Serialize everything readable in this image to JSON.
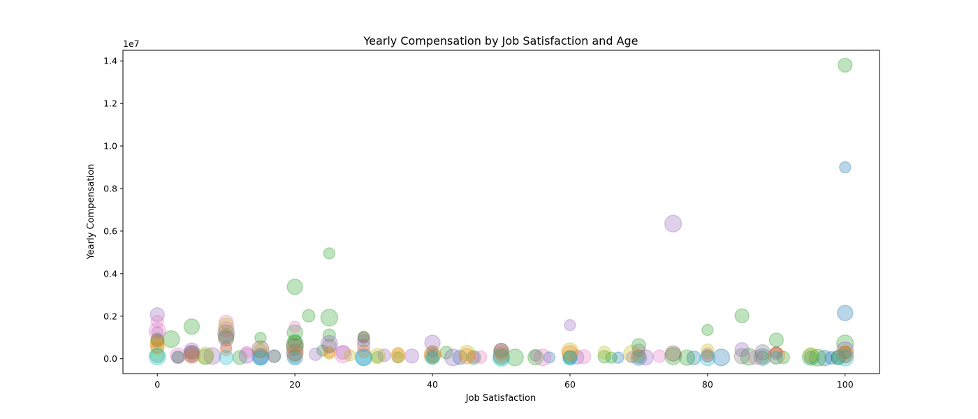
{
  "chart_data": {
    "type": "scatter",
    "title": "Yearly Compensation by Job Satisfaction and Age",
    "xlabel": "Job Satisfaction",
    "ylabel": "Yearly Compensation",
    "y_offset_label": "1e7",
    "xlim": [
      -5,
      105
    ],
    "ylim": [
      -700000,
      14500000
    ],
    "x_ticks": [
      0,
      20,
      40,
      60,
      80,
      100
    ],
    "y_ticks": [
      0,
      2000000,
      4000000,
      6000000,
      8000000,
      10000000,
      12000000,
      14000000
    ],
    "x_tick_labels": [
      "0",
      "20",
      "40",
      "60",
      "80",
      "100"
    ],
    "y_tick_labels": [
      "0.0",
      "0.2",
      "0.4",
      "0.6",
      "0.8",
      "1.0",
      "1.2",
      "1.4"
    ],
    "grid": false,
    "marker_alpha": 0.3,
    "series": [
      {
        "color": "#1f77b4",
        "points": [
          [
            100,
            9000000
          ],
          [
            100,
            2150000
          ],
          [
            100,
            100000
          ],
          [
            82,
            60000
          ],
          [
            78,
            40000
          ],
          [
            67,
            50000
          ],
          [
            97,
            30000
          ],
          [
            95,
            60000
          ],
          [
            88,
            80000
          ],
          [
            44,
            60000
          ],
          [
            57,
            60000
          ],
          [
            20,
            70000
          ],
          [
            3,
            70000
          ],
          [
            15,
            90000
          ],
          [
            60,
            60000
          ],
          [
            40,
            120000
          ],
          [
            70,
            50000
          ],
          [
            98,
            40000
          ],
          [
            30,
            70000
          ],
          [
            99,
            50000
          ]
        ]
      },
      {
        "color": "#2ca02c",
        "points": [
          [
            100,
            13800000
          ],
          [
            25,
            4950000
          ],
          [
            20,
            3380000
          ],
          [
            22,
            2020000
          ],
          [
            25,
            1930000
          ],
          [
            85,
            2020000
          ],
          [
            80,
            1350000
          ],
          [
            5,
            1510000
          ],
          [
            0,
            920000
          ],
          [
            2,
            920000
          ],
          [
            90,
            880000
          ],
          [
            15,
            980000
          ],
          [
            20,
            1230000
          ],
          [
            25,
            1100000
          ],
          [
            100,
            720000
          ],
          [
            70,
            620000
          ],
          [
            30,
            1030000
          ],
          [
            10,
            1060000
          ],
          [
            42,
            290000
          ],
          [
            52,
            60000
          ],
          [
            46,
            60000
          ],
          [
            66,
            50000
          ],
          [
            77,
            50000
          ],
          [
            91,
            60000
          ],
          [
            86,
            90000
          ],
          [
            0,
            150000
          ],
          [
            3,
            70000
          ],
          [
            7,
            90000
          ],
          [
            17,
            120000
          ],
          [
            20,
            690000
          ],
          [
            20,
            810000
          ],
          [
            24,
            380000
          ],
          [
            40,
            120000
          ],
          [
            60,
            80000
          ],
          [
            75,
            120000
          ],
          [
            99,
            60000
          ],
          [
            35,
            60000
          ],
          [
            50,
            80000
          ],
          [
            88,
            60000
          ],
          [
            96,
            50000
          ],
          [
            12,
            60000
          ],
          [
            32,
            80000
          ],
          [
            55,
            70000
          ],
          [
            65,
            90000
          ],
          [
            95,
            80000
          ]
        ]
      },
      {
        "color": "#9467bd",
        "points": [
          [
            75,
            6350000
          ],
          [
            0,
            2070000
          ],
          [
            60,
            1580000
          ],
          [
            40,
            750000
          ],
          [
            30,
            630000
          ],
          [
            100,
            400000
          ],
          [
            85,
            430000
          ],
          [
            10,
            550000
          ],
          [
            5,
            380000
          ],
          [
            23,
            210000
          ],
          [
            43,
            60000
          ],
          [
            61,
            70000
          ],
          [
            69,
            70000
          ],
          [
            13,
            150000
          ],
          [
            17,
            120000
          ],
          [
            25,
            700000
          ],
          [
            27,
            300000
          ],
          [
            0,
            1250000
          ],
          [
            50,
            350000
          ],
          [
            90,
            250000
          ],
          [
            8,
            130000
          ],
          [
            37,
            130000
          ],
          [
            46,
            70000
          ],
          [
            71,
            60000
          ],
          [
            33,
            160000
          ],
          [
            5,
            200000
          ],
          [
            15,
            90000
          ],
          [
            80,
            100000
          ]
        ]
      },
      {
        "color": "#e377c2",
        "points": [
          [
            0,
            1750000
          ],
          [
            0,
            1300000
          ],
          [
            10,
            1720000
          ],
          [
            20,
            1500000
          ],
          [
            10,
            1380000
          ],
          [
            73,
            120000
          ],
          [
            56,
            60000
          ],
          [
            87,
            60000
          ],
          [
            13,
            320000
          ],
          [
            3,
            150000
          ],
          [
            47,
            80000
          ],
          [
            27,
            200000
          ],
          [
            62,
            100000
          ],
          [
            80,
            250000
          ],
          [
            50,
            150000
          ]
        ]
      },
      {
        "color": "#bcbd22",
        "points": [
          [
            10,
            1550000
          ],
          [
            65,
            290000
          ],
          [
            69,
            230000
          ],
          [
            95,
            200000
          ],
          [
            35,
            280000
          ],
          [
            45,
            270000
          ],
          [
            80,
            400000
          ],
          [
            60,
            350000
          ],
          [
            0,
            780000
          ],
          [
            28,
            160000
          ],
          [
            32,
            120000
          ],
          [
            0,
            500000
          ],
          [
            7,
            150000
          ],
          [
            15,
            350000
          ],
          [
            25,
            240000
          ],
          [
            50,
            230000
          ],
          [
            100,
            250000
          ]
        ]
      },
      {
        "color": "#8c564b",
        "points": [
          [
            30,
            1000000
          ],
          [
            10,
            950000
          ],
          [
            0,
            850000
          ],
          [
            20,
            550000
          ],
          [
            50,
            400000
          ],
          [
            90,
            300000
          ],
          [
            75,
            250000
          ],
          [
            100,
            300000
          ],
          [
            15,
            450000
          ],
          [
            5,
            300000
          ]
        ]
      },
      {
        "color": "#ff7f0e",
        "points": [
          [
            0,
            600000
          ],
          [
            10,
            400000
          ],
          [
            20,
            250000
          ],
          [
            30,
            350000
          ],
          [
            40,
            200000
          ],
          [
            35,
            150000
          ],
          [
            50,
            180000
          ],
          [
            60,
            260000
          ],
          [
            80,
            150000
          ],
          [
            100,
            200000
          ],
          [
            5,
            120000
          ],
          [
            25,
            300000
          ],
          [
            45,
            120000
          ],
          [
            70,
            120000
          ],
          [
            90,
            140000
          ]
        ]
      },
      {
        "color": "#17becf",
        "points": [
          [
            0,
            100000
          ],
          [
            10,
            60000
          ],
          [
            20,
            50000
          ],
          [
            30,
            40000
          ],
          [
            40,
            30000
          ],
          [
            50,
            40000
          ],
          [
            60,
            30000
          ],
          [
            70,
            40000
          ],
          [
            80,
            30000
          ],
          [
            90,
            40000
          ],
          [
            100,
            50000
          ],
          [
            15,
            30000
          ]
        ]
      },
      {
        "color": "#7f7f7f",
        "points": [
          [
            30,
            850000
          ],
          [
            10,
            1200000
          ],
          [
            25,
            600000
          ],
          [
            40,
            350000
          ],
          [
            88,
            300000
          ],
          [
            70,
            400000
          ],
          [
            20,
            300000
          ],
          [
            5,
            200000
          ],
          [
            55,
            150000
          ],
          [
            85,
            120000
          ]
        ]
      }
    ]
  }
}
